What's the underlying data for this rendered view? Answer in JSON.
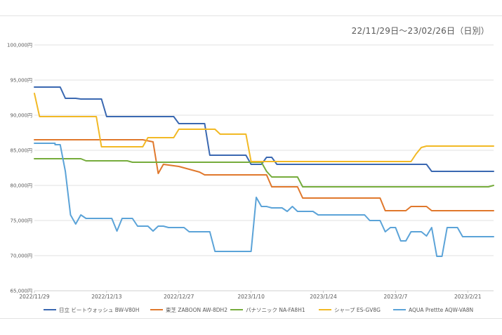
{
  "chart_data": {
    "type": "line",
    "subtitle": "22/11/29日〜23/02/26日（日別）",
    "x_start": "2022-11-29",
    "x_ticks": [
      "2022/11/29",
      "2022/12/13",
      "2022/12/27",
      "2023/1/10",
      "2023/1/24",
      "2023/2/7",
      "2023/2/21"
    ],
    "y_ticks": [
      "65,000円",
      "70,000円",
      "75,000円",
      "80,000円",
      "85,000円",
      "90,000円",
      "95,000円",
      "100,000円"
    ],
    "ylim": [
      65000,
      100000
    ],
    "grid": true,
    "legend_position": "bottom",
    "series": [
      {
        "name": "日立 ビートウォッシュ BW-V80H",
        "color": "#3a68b1",
        "points": [
          [
            "2022-11-29",
            94000
          ],
          [
            "2022-12-04",
            94000
          ],
          [
            "2022-12-05",
            92400
          ],
          [
            "2022-12-07",
            92400
          ],
          [
            "2022-12-08",
            92300
          ],
          [
            "2022-12-12",
            92300
          ],
          [
            "2022-12-13",
            89800
          ],
          [
            "2022-12-26",
            89800
          ],
          [
            "2022-12-27",
            88800
          ],
          [
            "2023-01-01",
            88800
          ],
          [
            "2023-01-02",
            84300
          ],
          [
            "2023-01-09",
            84300
          ],
          [
            "2023-01-10",
            83000
          ],
          [
            "2023-01-12",
            83000
          ],
          [
            "2023-01-13",
            84000
          ],
          [
            "2023-01-14",
            84000
          ],
          [
            "2023-01-15",
            83000
          ],
          [
            "2023-02-13",
            83000
          ],
          [
            "2023-02-14",
            82000
          ],
          [
            "2023-02-26",
            82000
          ]
        ]
      },
      {
        "name": "東芝 ZABOON AW-8DH2",
        "color": "#e0782c",
        "points": [
          [
            "2022-11-29",
            86500
          ],
          [
            "2022-12-20",
            86500
          ],
          [
            "2022-12-22",
            86200
          ],
          [
            "2022-12-23",
            81700
          ],
          [
            "2022-12-24",
            83000
          ],
          [
            "2022-12-25",
            82900
          ],
          [
            "2022-12-27",
            82700
          ],
          [
            "2022-12-29",
            82300
          ],
          [
            "2022-12-31",
            81900
          ],
          [
            "2023-01-01",
            81500
          ],
          [
            "2023-01-13",
            81500
          ],
          [
            "2023-01-14",
            79800
          ],
          [
            "2023-01-19",
            79800
          ],
          [
            "2023-01-20",
            78200
          ],
          [
            "2023-02-04",
            78200
          ],
          [
            "2023-02-05",
            76400
          ],
          [
            "2023-02-09",
            76400
          ],
          [
            "2023-02-10",
            77000
          ],
          [
            "2023-02-13",
            77000
          ],
          [
            "2023-02-14",
            76400
          ],
          [
            "2023-02-26",
            76400
          ]
        ]
      },
      {
        "name": "パナソニック NA-FA8H1",
        "color": "#76ac3c",
        "points": [
          [
            "2022-11-29",
            83800
          ],
          [
            "2022-12-08",
            83800
          ],
          [
            "2022-12-09",
            83500
          ],
          [
            "2022-12-17",
            83500
          ],
          [
            "2022-12-18",
            83300
          ],
          [
            "2023-01-12",
            83300
          ],
          [
            "2023-01-13",
            82000
          ],
          [
            "2023-01-14",
            81200
          ],
          [
            "2023-01-19",
            81200
          ],
          [
            "2023-01-20",
            79800
          ],
          [
            "2023-02-25",
            79800
          ],
          [
            "2023-02-26",
            80000
          ]
        ]
      },
      {
        "name": "シャープ ES-GV8G",
        "color": "#f2b925",
        "points": [
          [
            "2022-11-29",
            93100
          ],
          [
            "2022-11-30",
            89800
          ],
          [
            "2022-12-11",
            89800
          ],
          [
            "2022-12-12",
            85500
          ],
          [
            "2022-12-20",
            85500
          ],
          [
            "2022-12-21",
            86800
          ],
          [
            "2022-12-26",
            86800
          ],
          [
            "2022-12-27",
            88000
          ],
          [
            "2023-01-03",
            88000
          ],
          [
            "2023-01-04",
            87300
          ],
          [
            "2023-01-09",
            87300
          ],
          [
            "2023-01-10",
            83400
          ],
          [
            "2023-02-10",
            83400
          ],
          [
            "2023-02-11",
            84500
          ],
          [
            "2023-02-12",
            85400
          ],
          [
            "2023-02-13",
            85600
          ],
          [
            "2023-02-26",
            85600
          ]
        ]
      },
      {
        "name": "AQUA Prettte AQW-VA8N",
        "color": "#5ba3d8",
        "points": [
          [
            "2022-11-29",
            86000
          ],
          [
            "2022-12-03",
            86000
          ],
          [
            "2022-12-03",
            85800
          ],
          [
            "2022-12-04",
            85800
          ],
          [
            "2022-12-05",
            82000
          ],
          [
            "2022-12-06",
            75800
          ],
          [
            "2022-12-07",
            74500
          ],
          [
            "2022-12-08",
            75800
          ],
          [
            "2022-12-09",
            75300
          ],
          [
            "2022-12-14",
            75300
          ],
          [
            "2022-12-15",
            73500
          ],
          [
            "2022-12-16",
            75300
          ],
          [
            "2022-12-18",
            75300
          ],
          [
            "2022-12-19",
            74200
          ],
          [
            "2022-12-21",
            74200
          ],
          [
            "2022-12-22",
            73500
          ],
          [
            "2022-12-23",
            74200
          ],
          [
            "2022-12-24",
            74200
          ],
          [
            "2022-12-25",
            74000
          ],
          [
            "2022-12-28",
            74000
          ],
          [
            "2022-12-29",
            73400
          ],
          [
            "2023-01-02",
            73400
          ],
          [
            "2023-01-03",
            70600
          ],
          [
            "2023-01-10",
            70600
          ],
          [
            "2023-01-11",
            78300
          ],
          [
            "2023-01-12",
            77000
          ],
          [
            "2023-01-13",
            77000
          ],
          [
            "2023-01-14",
            76800
          ],
          [
            "2023-01-16",
            76800
          ],
          [
            "2023-01-17",
            76300
          ],
          [
            "2023-01-18",
            77000
          ],
          [
            "2023-01-19",
            76300
          ],
          [
            "2023-01-22",
            76300
          ],
          [
            "2023-01-23",
            75800
          ],
          [
            "2023-02-01",
            75800
          ],
          [
            "2023-02-02",
            75000
          ],
          [
            "2023-02-04",
            75000
          ],
          [
            "2023-02-05",
            73400
          ],
          [
            "2023-02-06",
            74000
          ],
          [
            "2023-02-07",
            74000
          ],
          [
            "2023-02-08",
            72100
          ],
          [
            "2023-02-09",
            72100
          ],
          [
            "2023-02-10",
            73400
          ],
          [
            "2023-02-12",
            73400
          ],
          [
            "2023-02-13",
            72800
          ],
          [
            "2023-02-14",
            74000
          ],
          [
            "2023-02-15",
            69900
          ],
          [
            "2023-02-16",
            69900
          ],
          [
            "2023-02-17",
            74000
          ],
          [
            "2023-02-19",
            74000
          ],
          [
            "2023-02-20",
            72700
          ],
          [
            "2023-02-26",
            72700
          ]
        ]
      }
    ]
  }
}
